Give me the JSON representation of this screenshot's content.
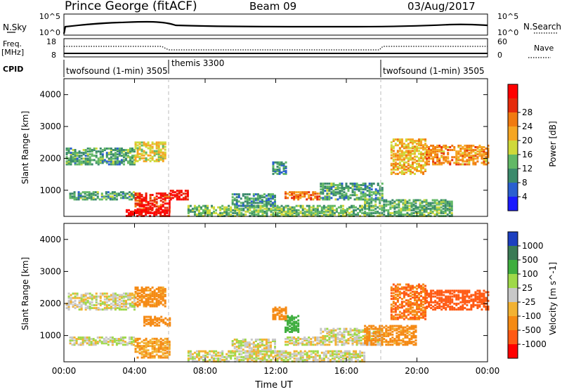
{
  "header": {
    "station": "Prince George (fitACF)",
    "beam": "Beam 09",
    "date": "03/Aug/2017"
  },
  "panels": {
    "nsky": {
      "label": "N.Sky",
      "tick_top": "10^5",
      "tick_bottom": "10^0",
      "right_top": "10^5",
      "right_bottom": "10^0",
      "right_label": "N.Search"
    },
    "freq": {
      "label_line1": "Freq.",
      "label_line2": "[MHz]",
      "tick_top": "18",
      "tick_bottom": "8",
      "right_top": "60",
      "right_bottom": "0",
      "right_label": "Nave"
    },
    "cpid": {
      "label": "CPID",
      "segments": [
        "twofsound (1-min) 3505",
        "themis 3300",
        "twofsound (1-min) 3505"
      ]
    }
  },
  "axes": {
    "ylabel": "Slant Range [km]",
    "yticks": [
      "1000",
      "2000",
      "3000",
      "4000"
    ],
    "xticks": [
      "00:00",
      "04:00",
      "08:00",
      "12:00",
      "16:00",
      "20:00",
      "00:00"
    ],
    "xlabel": "Time UT"
  },
  "colorbars": {
    "power": {
      "label": "Power [dB]",
      "ticks": [
        "4",
        "8",
        "12",
        "16",
        "20",
        "24",
        "28"
      ],
      "colors": [
        "#1a1aff",
        "#2a5fd0",
        "#3b8a6c",
        "#62b866",
        "#cfd93a",
        "#f5a623",
        "#f07a10",
        "#e52b0b",
        "#ff0000"
      ]
    },
    "velocity": {
      "label": "Velocity [m s^-1]",
      "ticks": [
        "1000",
        "500",
        "100",
        "25",
        "-25",
        "-100",
        "-500",
        "-1000"
      ],
      "colors": [
        "#1c3fbf",
        "#3a7a55",
        "#3fae3f",
        "#9fd94a",
        "#c8c8c8",
        "#f2b233",
        "#f58a14",
        "#ff5a14",
        "#ff0000"
      ]
    }
  },
  "chart_data": [
    {
      "type": "heatmap",
      "title": "Power [dB]",
      "xlabel": "Time UT",
      "ylabel": "Slant Range [km]",
      "xlim": [
        "00:00",
        "24:00"
      ],
      "ylim": [
        180,
        4500
      ],
      "value_range": [
        0,
        30
      ],
      "regions": [
        {
          "t0": 0.1,
          "t1": 4.0,
          "r0": 1800,
          "r1": 2300,
          "value": 10
        },
        {
          "t0": 4.0,
          "t1": 5.8,
          "r0": 1900,
          "r1": 2500,
          "value": 16
        },
        {
          "t0": 0.3,
          "t1": 4.0,
          "r0": 700,
          "r1": 950,
          "value": 10
        },
        {
          "t0": 4.0,
          "t1": 6.0,
          "r0": 300,
          "r1": 900,
          "value": 26
        },
        {
          "t0": 6.0,
          "t1": 7.0,
          "r0": 700,
          "r1": 1000,
          "value": 28
        },
        {
          "t0": 3.5,
          "t1": 6.0,
          "r0": 180,
          "r1": 400,
          "value": 28
        },
        {
          "t0": 7.0,
          "t1": 17.0,
          "r0": 180,
          "r1": 500,
          "value": 12
        },
        {
          "t0": 9.5,
          "t1": 12.0,
          "r0": 500,
          "r1": 900,
          "value": 9
        },
        {
          "t0": 12.5,
          "t1": 14.5,
          "r0": 700,
          "r1": 950,
          "value": 22
        },
        {
          "t0": 14.5,
          "t1": 18.0,
          "r0": 700,
          "r1": 1200,
          "value": 10
        },
        {
          "t0": 17.0,
          "t1": 22.0,
          "r0": 180,
          "r1": 700,
          "value": 11
        },
        {
          "t0": 18.5,
          "t1": 20.5,
          "r0": 1500,
          "r1": 2600,
          "value": 18
        },
        {
          "t0": 20.5,
          "t1": 24.0,
          "r0": 1800,
          "r1": 2400,
          "value": 20
        },
        {
          "t0": 11.8,
          "t1": 12.6,
          "r0": 1500,
          "r1": 1900,
          "value": 9
        }
      ]
    },
    {
      "type": "heatmap",
      "title": "Velocity [m s^-1]",
      "xlabel": "Time UT",
      "ylabel": "Slant Range [km]",
      "xlim": [
        "00:00",
        "24:00"
      ],
      "ylim": [
        180,
        4500
      ],
      "value_range": [
        -1000,
        1000
      ],
      "regions": [
        {
          "t0": 0.1,
          "t1": 4.0,
          "r0": 1800,
          "r1": 2300,
          "value": 0
        },
        {
          "t0": 4.0,
          "t1": 5.8,
          "r0": 1900,
          "r1": 2500,
          "value": -150
        },
        {
          "t0": 0.3,
          "t1": 4.0,
          "r0": 700,
          "r1": 950,
          "value": 0
        },
        {
          "t0": 4.0,
          "t1": 6.0,
          "r0": 300,
          "r1": 900,
          "value": -100
        },
        {
          "t0": 4.5,
          "t1": 6.0,
          "r0": 1300,
          "r1": 1600,
          "value": -300
        },
        {
          "t0": 7.0,
          "t1": 17.0,
          "r0": 180,
          "r1": 500,
          "value": 0
        },
        {
          "t0": 9.5,
          "t1": 12.0,
          "r0": 500,
          "r1": 900,
          "value": 0
        },
        {
          "t0": 12.5,
          "t1": 14.5,
          "r0": 700,
          "r1": 950,
          "value": 0
        },
        {
          "t0": 14.5,
          "t1": 18.0,
          "r0": 700,
          "r1": 1200,
          "value": 0
        },
        {
          "t0": 17.0,
          "t1": 20.0,
          "r0": 700,
          "r1": 1300,
          "value": -150
        },
        {
          "t0": 18.5,
          "t1": 20.5,
          "r0": 1500,
          "r1": 2600,
          "value": -400
        },
        {
          "t0": 20.5,
          "t1": 24.0,
          "r0": 1800,
          "r1": 2400,
          "value": -600
        },
        {
          "t0": 12.5,
          "t1": 13.3,
          "r0": 1100,
          "r1": 1600,
          "value": 150
        },
        {
          "t0": 11.8,
          "t1": 12.6,
          "r0": 1500,
          "r1": 1900,
          "value": -200
        }
      ]
    }
  ]
}
